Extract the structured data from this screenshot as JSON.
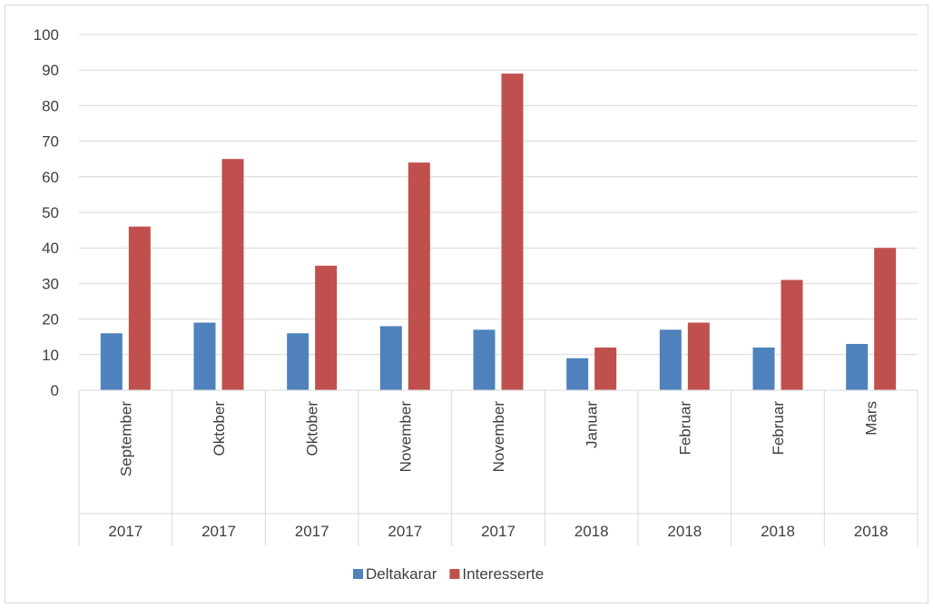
{
  "chart_data": {
    "type": "bar",
    "categories": [
      {
        "month": "September",
        "year": "2017"
      },
      {
        "month": "Oktober",
        "year": "2017"
      },
      {
        "month": "Oktober",
        "year": "2017"
      },
      {
        "month": "November",
        "year": "2017"
      },
      {
        "month": "November",
        "year": "2017"
      },
      {
        "month": "Januar",
        "year": "2018"
      },
      {
        "month": "Februar",
        "year": "2018"
      },
      {
        "month": "Februar",
        "year": "2018"
      },
      {
        "month": "Mars",
        "year": "2018"
      }
    ],
    "series": [
      {
        "name": "Deltakarar",
        "color": "#4f81bd",
        "values": [
          16,
          19,
          16,
          18,
          17,
          9,
          17,
          12,
          13
        ]
      },
      {
        "name": "Interesserte",
        "color": "#c0504d",
        "values": [
          46,
          65,
          35,
          64,
          89,
          12,
          19,
          31,
          40
        ]
      }
    ],
    "ylim": [
      0,
      100
    ],
    "yticks": [
      0,
      10,
      20,
      30,
      40,
      50,
      60,
      70,
      80,
      90,
      100
    ],
    "grid": true,
    "legend_position": "bottom",
    "title": "",
    "xlabel": "",
    "ylabel": ""
  }
}
